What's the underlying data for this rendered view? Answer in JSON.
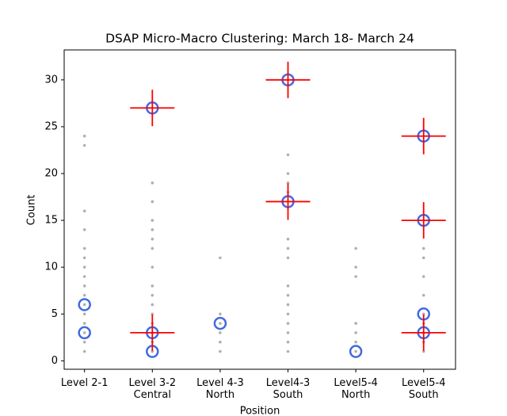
{
  "chart_data": {
    "type": "scatter",
    "title": "DSAP Micro-Macro Clustering: March 18- March 24",
    "x_label": "Position",
    "y_label": "Count",
    "categories": [
      "Level 2-1",
      "Level 3-2\nCentral",
      "Level 4-3\nNorth",
      "Level4-3\nSouth",
      "Level5-4\nNorth",
      "Level5-4\nSouth"
    ],
    "xlim": [
      -0.3,
      5.47
    ],
    "ylim": [
      -0.9,
      33.2
    ],
    "yticks": [
      0,
      5,
      10,
      15,
      20,
      25,
      30
    ],
    "series": [
      {
        "marker": "dot",
        "color": "#b0b0b0",
        "x": [
          0,
          0,
          0,
          0,
          0,
          0,
          0,
          0,
          0,
          0,
          0,
          0,
          0,
          0,
          0,
          0,
          1,
          1,
          1,
          1,
          1,
          1,
          1,
          1,
          1,
          1,
          1,
          1,
          1,
          1,
          1,
          2,
          2,
          2,
          2,
          2,
          2,
          3,
          3,
          3,
          3,
          3,
          3,
          3,
          3,
          3,
          3,
          3,
          3,
          3,
          3,
          3,
          4,
          4,
          4,
          4,
          4,
          4,
          4,
          5,
          5,
          5,
          5,
          5,
          5,
          5,
          5,
          5
        ],
        "values": [
          24,
          23,
          16,
          14,
          12,
          11,
          10,
          9,
          8,
          7,
          6,
          5,
          4,
          3,
          2,
          1,
          19,
          17,
          15,
          14,
          13,
          12,
          10,
          8,
          7,
          6,
          5,
          4,
          3,
          2,
          1,
          11,
          5,
          4,
          3,
          2,
          1,
          22,
          20,
          19,
          18,
          13,
          12,
          11,
          8,
          7,
          6,
          5,
          4,
          3,
          2,
          1,
          12,
          10,
          9,
          4,
          3,
          2,
          1,
          12,
          11,
          9,
          7,
          5,
          4,
          3,
          2,
          1
        ]
      },
      {
        "marker": "circle",
        "color": "#4169e1",
        "x": [
          0,
          0,
          1,
          1,
          1,
          2,
          3,
          3,
          4,
          5,
          5,
          5,
          5
        ],
        "values": [
          6,
          3,
          27,
          3,
          1,
          4,
          30,
          17,
          1,
          24,
          15,
          5,
          3
        ]
      },
      {
        "marker": "cross",
        "color": "#ff0000",
        "x": [
          1,
          1,
          3,
          3,
          5,
          5,
          5
        ],
        "values": [
          27,
          3,
          30,
          17,
          24,
          15,
          3
        ]
      }
    ]
  }
}
